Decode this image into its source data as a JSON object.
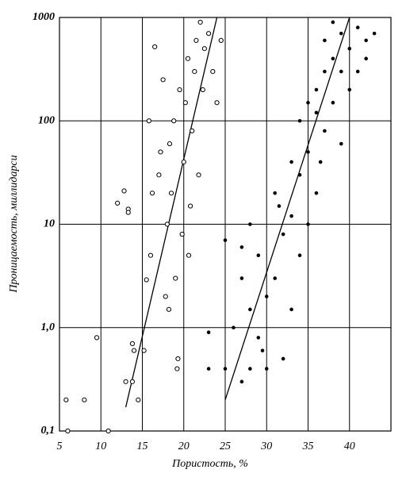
{
  "chart_data": {
    "type": "scatter",
    "x_label": "Пористость, %",
    "y_label": "Проницаемость,  миллидарси",
    "log_y": true,
    "grid": true,
    "color": "#000000",
    "xlim": [
      5,
      45
    ],
    "xticks": [
      5,
      10,
      15,
      20,
      25,
      30,
      35,
      40
    ],
    "ylim": [
      0.1,
      1000
    ],
    "yticks": [
      {
        "value": 0.1,
        "label": "0,1"
      },
      {
        "value": 1,
        "label": "1,0"
      },
      10,
      100,
      1000
    ],
    "series": [
      {
        "marker": "open",
        "x": [
          5.8,
          8,
          6,
          10.9,
          9.5,
          12,
          12.8,
          13.3,
          13.3,
          13,
          13.8,
          14,
          13.8,
          14.5,
          15.2,
          15.5,
          15.8,
          16,
          16.5,
          17,
          17.2,
          17.5,
          17.8,
          18,
          18.3,
          18.5,
          18.8,
          19,
          19.2,
          19.5,
          19.8,
          20,
          20.2,
          20.5,
          20.8,
          21,
          21.3,
          21.5,
          21.8,
          22,
          22.3,
          22.5,
          23,
          23.5,
          24,
          24.5,
          16.2,
          18.2,
          19.3,
          20.6
        ],
        "y": [
          0.2,
          0.2,
          0.1,
          0.1,
          0.8,
          16,
          21,
          14,
          13,
          0.3,
          0.3,
          0.6,
          0.7,
          0.2,
          0.6,
          2.9,
          100,
          5,
          520,
          30,
          50,
          250,
          2,
          10,
          60,
          20,
          100,
          3,
          0.4,
          200,
          8,
          40,
          150,
          400,
          15,
          80,
          300,
          600,
          30,
          900,
          200,
          500,
          700,
          300,
          150,
          600,
          20,
          1.5,
          0.5,
          5
        ]
      },
      {
        "marker": "filled",
        "x": [
          23,
          23,
          25,
          25,
          27,
          27,
          28,
          28,
          29,
          29,
          30,
          30,
          31,
          31,
          32,
          32,
          33,
          33,
          34,
          34,
          35,
          35,
          36,
          36,
          36,
          37,
          37,
          37,
          38,
          38,
          38,
          39,
          39,
          39,
          40,
          40,
          41,
          41,
          42,
          42,
          43,
          35,
          34,
          33,
          26,
          27,
          28,
          29.5,
          31.5,
          36.5
        ],
        "y": [
          0.9,
          0.4,
          0.4,
          7,
          3,
          0.3,
          0.4,
          1.5,
          5,
          0.8,
          2,
          0.4,
          3,
          20,
          8,
          0.5,
          12,
          1.5,
          30,
          5,
          50,
          10,
          120,
          20,
          200,
          300,
          80,
          600,
          400,
          150,
          900,
          300,
          700,
          60,
          500,
          200,
          800,
          300,
          600,
          400,
          700,
          150,
          100,
          40,
          1,
          6,
          10,
          0.6,
          15,
          40
        ]
      }
    ],
    "trend_lines": [
      {
        "x": [
          13,
          24
        ],
        "y": [
          0.17,
          1000
        ]
      },
      {
        "x": [
          25,
          40
        ],
        "y": [
          0.2,
          1000
        ]
      }
    ]
  }
}
